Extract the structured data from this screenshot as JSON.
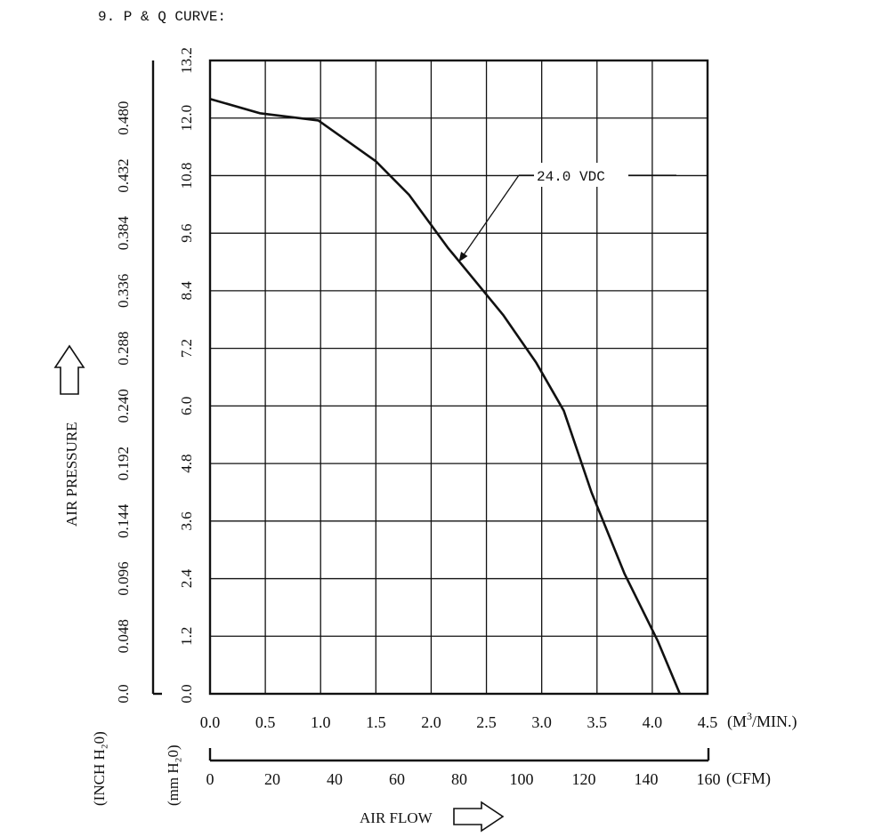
{
  "heading": "9. P & Q CURVE:",
  "chart_data": {
    "type": "line",
    "title": "",
    "xlabel": "AIR FLOW",
    "ylabel": "AIR PRESSURE",
    "x_unit": "(M³/MIN.)",
    "x_unit_base": "(M",
    "x_unit_sup": "3",
    "x_unit_tail": "/MIN.)",
    "x_secondary_unit": "(CFM)",
    "y_unit_mm": "(mm H₂0)",
    "y_unit_inch": "(INCH H₂0)",
    "xlim": [
      0,
      4.5
    ],
    "ylim": [
      0,
      13.2
    ],
    "grid": true,
    "x_ticks": [
      "0.0",
      "0.5",
      "1.0",
      "1.5",
      "2.0",
      "2.5",
      "3.0",
      "3.5",
      "4.0",
      "4.5"
    ],
    "y_ticks_mm": [
      "0.0",
      "1.2",
      "2.4",
      "3.6",
      "4.8",
      "6.0",
      "7.2",
      "8.4",
      "9.6",
      "10.8",
      "12.0",
      "13.2"
    ],
    "y_ticks_inch": [
      "0.0",
      "0.048",
      "0.096",
      "0.144",
      "0.192",
      "0.240",
      "0.288",
      "0.336",
      "0.384",
      "0.432",
      "0.480"
    ],
    "cfm_ticks": [
      "0",
      "20",
      "40",
      "60",
      "80",
      "100",
      "120",
      "140",
      "160"
    ],
    "cfm_lim": [
      0,
      160
    ],
    "series": [
      {
        "name": "24.0 VDC",
        "x": [
          0.0,
          0.45,
          0.98,
          1.5,
          1.8,
          2.15,
          2.4,
          2.65,
          2.95,
          3.2,
          3.45,
          3.75,
          4.05,
          4.25
        ],
        "y": [
          12.4,
          12.1,
          11.95,
          11.1,
          10.4,
          9.3,
          8.6,
          7.9,
          6.9,
          5.9,
          4.2,
          2.5,
          1.1,
          0.0
        ]
      }
    ],
    "annotation": {
      "text": "24.0 VDC",
      "points_to": {
        "x": 2.25,
        "y": 9.0
      }
    }
  }
}
